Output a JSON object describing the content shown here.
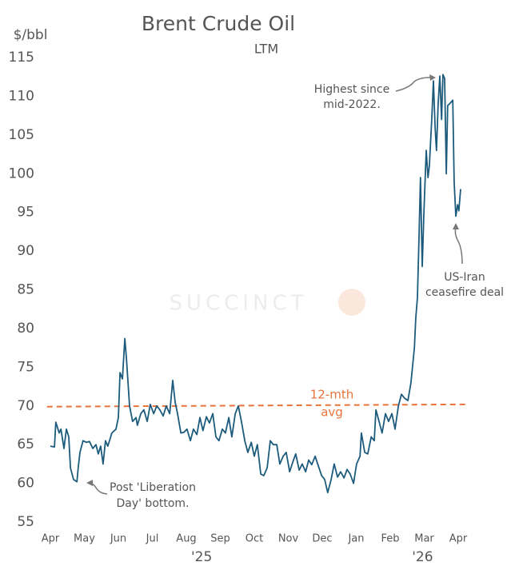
{
  "chart_data": {
    "type": "line",
    "title": "Brent Crude Oil",
    "subtitle": "LTM",
    "y_label": "$/bbl",
    "watermark": "SUCCINCT",
    "year_labels": [
      {
        "x": 4.45,
        "label": "'25"
      },
      {
        "x": 10.95,
        "label": "'26"
      }
    ],
    "xlim": [
      -0.1,
      12.5
    ],
    "ylim": [
      55,
      115
    ],
    "xticks": [
      {
        "value": 0,
        "label": "Apr"
      },
      {
        "value": 1,
        "label": "May"
      },
      {
        "value": 2,
        "label": "Jun"
      },
      {
        "value": 3,
        "label": "Jul"
      },
      {
        "value": 4,
        "label": "Aug"
      },
      {
        "value": 5,
        "label": "Sep"
      },
      {
        "value": 6,
        "label": "Oct"
      },
      {
        "value": 7,
        "label": "Nov"
      },
      {
        "value": 8,
        "label": "Dec"
      },
      {
        "value": 9,
        "label": "Jan"
      },
      {
        "value": 10,
        "label": "Feb"
      },
      {
        "value": 11,
        "label": "Mar"
      },
      {
        "value": 12,
        "label": "Apr"
      }
    ],
    "yticks": [
      55,
      60,
      65,
      70,
      75,
      80,
      85,
      90,
      95,
      100,
      105,
      110,
      115
    ],
    "grid": false,
    "series": [
      {
        "color": "#1d5b7c",
        "x": [
          0,
          0.12,
          0.16,
          0.26,
          0.31,
          0.4,
          0.47,
          0.54,
          0.59,
          0.68,
          0.78,
          0.82,
          0.87,
          0.96,
          1.06,
          1.15,
          1.25,
          1.34,
          1.41,
          1.48,
          1.55,
          1.62,
          1.69,
          1.81,
          1.93,
          2.0,
          2.05,
          2.12,
          2.19,
          2.24,
          2.33,
          2.42,
          2.52,
          2.56,
          2.66,
          2.75,
          2.85,
          2.94,
          3.04,
          3.13,
          3.22,
          3.32,
          3.41,
          3.51,
          3.6,
          3.67,
          3.74,
          3.84,
          3.93,
          4.02,
          4.12,
          4.21,
          4.31,
          4.4,
          4.49,
          4.59,
          4.68,
          4.78,
          4.87,
          4.96,
          5.06,
          5.15,
          5.25,
          5.34,
          5.44,
          5.53,
          5.62,
          5.72,
          5.81,
          5.91,
          6.0,
          6.09,
          6.19,
          6.28,
          6.38,
          6.47,
          6.56,
          6.66,
          6.75,
          6.85,
          6.94,
          7.04,
          7.13,
          7.22,
          7.32,
          7.41,
          7.51,
          7.6,
          7.69,
          7.79,
          7.88,
          7.98,
          8.07,
          8.16,
          8.26,
          8.35,
          8.45,
          8.54,
          8.64,
          8.73,
          8.82,
          8.92,
          9.01,
          9.11,
          9.15,
          9.25,
          9.34,
          9.44,
          9.53,
          9.58,
          9.67,
          9.76,
          9.86,
          9.95,
          10.05,
          10.14,
          10.24,
          10.33,
          10.42,
          10.52,
          10.61,
          10.71,
          10.75,
          10.8,
          10.85,
          10.89,
          10.94,
          10.99,
          11.06,
          11.11,
          11.15,
          11.22,
          11.27,
          11.32,
          11.36,
          11.41,
          11.46,
          11.51,
          11.55,
          11.6,
          11.65,
          11.69,
          11.74,
          11.84,
          11.88,
          11.93,
          11.98,
          12.02,
          12.07
        ],
        "values": [
          64.8,
          64.7,
          67.9,
          66.5,
          67,
          64.5,
          67,
          66,
          62,
          60.5,
          60.2,
          62,
          64,
          65.5,
          65.3,
          65.4,
          64.5,
          65,
          63.8,
          64.8,
          62.5,
          65.5,
          64.8,
          66.5,
          67,
          68.5,
          74.3,
          73.5,
          78.7,
          76,
          70,
          68,
          68.5,
          67.5,
          69,
          69.5,
          68,
          70.2,
          69,
          70,
          69.5,
          68.7,
          70,
          69,
          73.3,
          70.5,
          69,
          66.5,
          66.6,
          67,
          65.5,
          67,
          66.3,
          68.5,
          66.8,
          68.6,
          67.8,
          69,
          66,
          65.5,
          67,
          66.5,
          68.5,
          66,
          69,
          70,
          68,
          65.5,
          64,
          65.3,
          63.5,
          65,
          61.2,
          61,
          62,
          65.5,
          65,
          65,
          62.5,
          63.5,
          64,
          61.5,
          62.7,
          63.8,
          61.7,
          62.5,
          61.5,
          63,
          62.4,
          63.5,
          62.3,
          61,
          60.5,
          58.8,
          60.5,
          62.5,
          60.8,
          61.5,
          60.7,
          61.8,
          61.2,
          60,
          62.5,
          63.5,
          66.5,
          64,
          63.8,
          66,
          65.5,
          69.5,
          68,
          66.5,
          69,
          68,
          69,
          67,
          70,
          71.5,
          71,
          70.7,
          73,
          77.5,
          81.3,
          84,
          92.3,
          99.5,
          88,
          95,
          103,
          99.5,
          101,
          107,
          112,
          106,
          103,
          109,
          112.6,
          107,
          112.8,
          112.3,
          100,
          108.8,
          109,
          109.5,
          99,
          94.5,
          96,
          95.2,
          98
        ]
      }
    ],
    "average": {
      "label": [
        "12-mth",
        "avg"
      ],
      "color": "#e8743b",
      "x": [
        -0.1,
        12.3
      ],
      "values": [
        69.9,
        70.2
      ]
    },
    "annotations": [
      [
        "Highest since",
        "mid-2022."
      ],
      [
        "US-Iran",
        "ceasefire deal"
      ],
      [
        "Post 'Liberation",
        "Day' bottom."
      ]
    ]
  }
}
